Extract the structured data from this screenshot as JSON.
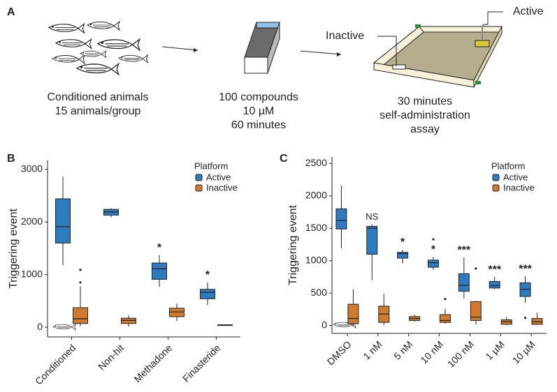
{
  "figure": {
    "panel_labels": [
      "A",
      "B",
      "C"
    ],
    "schematic": {
      "step1": [
        "Conditioned animals",
        "15 animals/group"
      ],
      "step2": [
        "100 compounds",
        "10 µM",
        "60 minutes"
      ],
      "step3": [
        "30 minutes",
        "self-administration",
        "assay"
      ],
      "inactive_label": "Inactive",
      "active_label": "Active"
    }
  },
  "chart_data": [
    {
      "type": "box",
      "ylabel": "Triggering event",
      "legend_title": "Platform",
      "legend": "top-right",
      "categories": [
        "Conditioned",
        "Non-hit",
        "Methadone",
        "Finasteride"
      ],
      "ylim": [
        -185,
        3170
      ],
      "yticks": [
        0,
        1000,
        2000,
        3000
      ],
      "series": [
        {
          "name": "Active",
          "color": "#2f7bbf",
          "annotations": [
            null,
            null,
            "*",
            "*"
          ],
          "boxes": [
            {
              "min": 1180,
              "q1": 1600,
              "median": 1910,
              "q3": 2440,
              "max": 2860,
              "outliers": []
            },
            {
              "min": 2090,
              "q1": 2130,
              "median": 2190,
              "q3": 2240,
              "max": 2260,
              "outliers": []
            },
            {
              "min": 770,
              "q1": 910,
              "median": 1110,
              "q3": 1220,
              "max": 1370,
              "outliers": []
            },
            {
              "min": 420,
              "q1": 540,
              "median": 660,
              "q3": 720,
              "max": 850,
              "outliers": []
            }
          ]
        },
        {
          "name": "Inactive",
          "color": "#d07a30",
          "boxes": [
            {
              "min": 20,
              "q1": 70,
              "median": 160,
              "q3": 370,
              "max": 780,
              "outliers": [
                850,
                1090
              ]
            },
            {
              "min": 10,
              "q1": 70,
              "median": 130,
              "q3": 170,
              "max": 230,
              "outliers": []
            },
            {
              "min": 120,
              "q1": 200,
              "median": 290,
              "q3": 360,
              "max": 450,
              "outliers": []
            },
            {
              "min": 30,
              "q1": 35,
              "median": 40,
              "q3": 45,
              "max": 50,
              "outliers": []
            }
          ]
        }
      ]
    },
    {
      "type": "box",
      "ylabel": "Triggering event",
      "legend_title": "Platform",
      "legend": "top-right",
      "categories": [
        "DMSO",
        "1 nM",
        "5 nM",
        "10 nM",
        "100 nM",
        "1 µM",
        "10 µM"
      ],
      "ylim": [
        -120,
        2600
      ],
      "yticks": [
        0,
        500,
        1000,
        1500,
        2000,
        2500
      ],
      "series": [
        {
          "name": "Active",
          "color": "#2f7bbf",
          "annotations": [
            null,
            "NS",
            "*",
            "*",
            "***",
            "***",
            "***"
          ],
          "boxes": [
            {
              "min": 1190,
              "q1": 1490,
              "median": 1620,
              "q3": 1800,
              "max": 2160,
              "outliers": []
            },
            {
              "min": 700,
              "q1": 1100,
              "median": 1500,
              "q3": 1530,
              "max": 1560,
              "outliers": []
            },
            {
              "min": 960,
              "q1": 1040,
              "median": 1110,
              "q3": 1130,
              "max": 1170,
              "outliers": []
            },
            {
              "min": 860,
              "q1": 900,
              "median": 970,
              "q3": 1010,
              "max": 1060,
              "outliers": [
                1330
              ]
            },
            {
              "min": 420,
              "q1": 530,
              "median": 620,
              "q3": 800,
              "max": 1050,
              "outliers": []
            },
            {
              "min": 560,
              "q1": 580,
              "median": 620,
              "q3": 680,
              "max": 750,
              "outliers": []
            },
            {
              "min": 350,
              "q1": 450,
              "median": 560,
              "q3": 660,
              "max": 760,
              "outliers": [
                120
              ]
            }
          ]
        },
        {
          "name": "Inactive",
          "color": "#d07a30",
          "boxes": [
            {
              "min": 0,
              "q1": 30,
              "median": 110,
              "q3": 330,
              "max": 560,
              "outliers": []
            },
            {
              "min": 10,
              "q1": 50,
              "median": 180,
              "q3": 300,
              "max": 490,
              "outliers": []
            },
            {
              "min": 60,
              "q1": 80,
              "median": 110,
              "q3": 140,
              "max": 170,
              "outliers": []
            },
            {
              "min": 30,
              "q1": 50,
              "median": 80,
              "q3": 170,
              "max": 260,
              "outliers": [
                410
              ]
            },
            {
              "min": 20,
              "q1": 80,
              "median": 130,
              "q3": 370,
              "max": 380,
              "outliers": [
                880
              ]
            },
            {
              "min": 10,
              "q1": 20,
              "median": 60,
              "q3": 90,
              "max": 130,
              "outliers": []
            },
            {
              "min": 10,
              "q1": 20,
              "median": 60,
              "q3": 110,
              "max": 200,
              "outliers": []
            }
          ]
        }
      ]
    }
  ]
}
